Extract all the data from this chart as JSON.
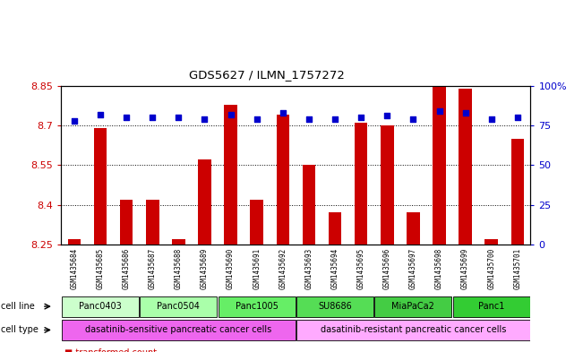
{
  "title": "GDS5627 / ILMN_1757272",
  "samples": [
    "GSM1435684",
    "GSM1435685",
    "GSM1435686",
    "GSM1435687",
    "GSM1435688",
    "GSM1435689",
    "GSM1435690",
    "GSM1435691",
    "GSM1435692",
    "GSM1435693",
    "GSM1435694",
    "GSM1435695",
    "GSM1435696",
    "GSM1435697",
    "GSM1435698",
    "GSM1435699",
    "GSM1435700",
    "GSM1435701"
  ],
  "transformed_counts": [
    8.27,
    8.69,
    8.42,
    8.42,
    8.27,
    8.57,
    8.78,
    8.42,
    8.74,
    8.55,
    8.37,
    8.71,
    8.7,
    8.37,
    8.85,
    8.84,
    8.27,
    8.65
  ],
  "percentile_ranks": [
    78,
    82,
    80,
    80,
    80,
    79,
    82,
    79,
    83,
    79,
    79,
    80,
    81,
    79,
    84,
    83,
    79,
    80
  ],
  "ylim_left": [
    8.25,
    8.85
  ],
  "ylim_right": [
    0,
    100
  ],
  "yticks_left": [
    8.25,
    8.4,
    8.55,
    8.7,
    8.85
  ],
  "yticks_right": [
    0,
    25,
    50,
    75,
    100
  ],
  "cell_line_groups": [
    {
      "label": "Panc0403",
      "start": 0,
      "end": 2,
      "color": "#ccffcc"
    },
    {
      "label": "Panc0504",
      "start": 3,
      "end": 5,
      "color": "#aaffaa"
    },
    {
      "label": "Panc1005",
      "start": 6,
      "end": 8,
      "color": "#66ee66"
    },
    {
      "label": "SU8686",
      "start": 9,
      "end": 11,
      "color": "#55dd55"
    },
    {
      "label": "MiaPaCa2",
      "start": 12,
      "end": 14,
      "color": "#44cc44"
    },
    {
      "label": "Panc1",
      "start": 15,
      "end": 17,
      "color": "#33cc33"
    }
  ],
  "cell_type_groups": [
    {
      "label": "dasatinib-sensitive pancreatic cancer cells",
      "start": 0,
      "end": 8,
      "color": "#ee66ee"
    },
    {
      "label": "dasatinib-resistant pancreatic cancer cells",
      "start": 9,
      "end": 17,
      "color": "#ffaaff"
    }
  ],
  "bar_color": "#cc0000",
  "dot_color": "#0000cc",
  "tick_color_left": "#cc0000",
  "tick_color_right": "#0000cc",
  "bar_width": 0.5,
  "background_color": "#ffffff"
}
